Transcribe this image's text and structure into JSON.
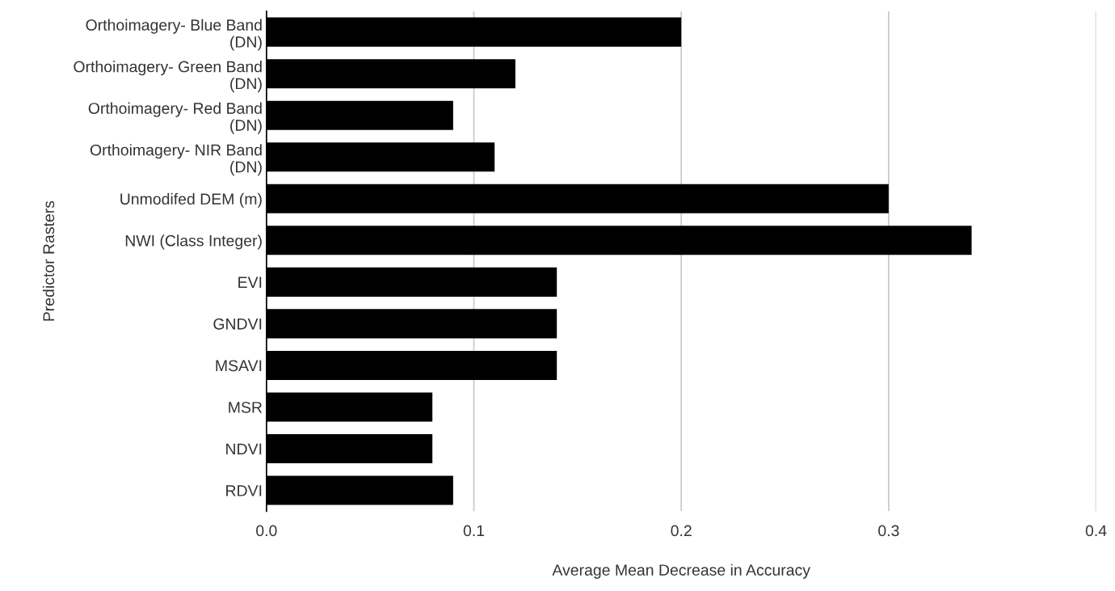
{
  "chart_data": {
    "type": "bar",
    "orientation": "horizontal",
    "xlabel": "Average Mean Decrease in Accuracy",
    "ylabel": "Predictor Rasters",
    "categories": [
      "Orthoimagery- Blue Band\n(DN)",
      "Orthoimagery- Green Band\n(DN)",
      "Orthoimagery- Red Band\n(DN)",
      "Orthoimagery- NIR Band\n(DN)",
      "Unmodifed DEM (m)",
      "NWI (Class Integer)",
      "EVI",
      "GNDVI",
      "MSAVI",
      "MSR",
      "NDVI",
      "RDVI"
    ],
    "values": [
      0.2,
      0.12,
      0.09,
      0.11,
      0.3,
      0.34,
      0.14,
      0.14,
      0.14,
      0.08,
      0.08,
      0.09
    ],
    "color": "#000000",
    "xlim": [
      0,
      0.4
    ],
    "xticks": [
      {
        "value": 0,
        "label": "0.0"
      },
      0.1,
      0.2,
      0.3,
      0.4
    ],
    "grid": "x"
  }
}
